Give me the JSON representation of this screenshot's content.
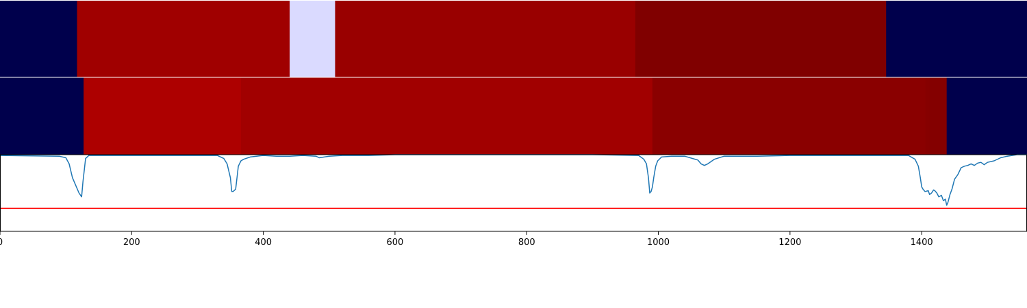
{
  "chart_data": [
    {
      "type": "heatmap",
      "name": "segments-row-1",
      "segments": [
        {
          "start": 0,
          "end": 117,
          "color": "#00004c"
        },
        {
          "start": 117,
          "end": 440,
          "color": "#a00000"
        },
        {
          "start": 440,
          "end": 509,
          "color": "#dadaff"
        },
        {
          "start": 509,
          "end": 965,
          "color": "#990000"
        },
        {
          "start": 965,
          "end": 1346,
          "color": "#800000"
        },
        {
          "start": 1346,
          "end": 1560,
          "color": "#00004c"
        }
      ]
    },
    {
      "type": "heatmap",
      "name": "segments-row-2",
      "segments": [
        {
          "start": 0,
          "end": 127,
          "color": "#00004c"
        },
        {
          "start": 127,
          "end": 366,
          "color": "#ad0000"
        },
        {
          "start": 366,
          "end": 991,
          "color": "#a10000"
        },
        {
          "start": 991,
          "end": 1406,
          "color": "#8a0000"
        },
        {
          "start": 1406,
          "end": 1412,
          "color": "#860000"
        },
        {
          "start": 1412,
          "end": 1438,
          "color": "#840000"
        },
        {
          "start": 1438,
          "end": 1560,
          "color": "#00004c"
        }
      ]
    },
    {
      "type": "line",
      "xlim": [
        0,
        1560
      ],
      "ylim": [
        -1.0,
        0.0
      ],
      "x": [
        0,
        90,
        100,
        105,
        110,
        115,
        120,
        124,
        126,
        128,
        130,
        135,
        330,
        340,
        345,
        350,
        352,
        354,
        358,
        362,
        366,
        370,
        380,
        400,
        420,
        440,
        460,
        480,
        485,
        500,
        520,
        540,
        560,
        600,
        700,
        800,
        900,
        970,
        978,
        982,
        985,
        987,
        989,
        991,
        993,
        996,
        999,
        1005,
        1020,
        1040,
        1060,
        1065,
        1070,
        1075,
        1085,
        1100,
        1150,
        1200,
        1300,
        1380,
        1390,
        1395,
        1398,
        1400,
        1402,
        1405,
        1410,
        1412,
        1415,
        1418,
        1420,
        1423,
        1426,
        1430,
        1433,
        1436,
        1438,
        1440,
        1443,
        1446,
        1450,
        1455,
        1460,
        1465,
        1470,
        1475,
        1480,
        1485,
        1490,
        1495,
        1500,
        1510,
        1520,
        1530,
        1545,
        1560
      ],
      "y": [
        -0.01,
        -0.02,
        -0.04,
        -0.12,
        -0.3,
        -0.4,
        -0.5,
        -0.55,
        -0.35,
        -0.2,
        -0.05,
        -0.01,
        -0.01,
        -0.05,
        -0.12,
        -0.3,
        -0.48,
        -0.48,
        -0.45,
        -0.15,
        -0.08,
        -0.06,
        -0.03,
        -0.01,
        -0.02,
        -0.02,
        -0.01,
        -0.02,
        -0.04,
        -0.02,
        -0.01,
        -0.01,
        -0.01,
        -0.0,
        -0.0,
        -0.0,
        -0.0,
        -0.01,
        -0.06,
        -0.12,
        -0.3,
        -0.5,
        -0.48,
        -0.42,
        -0.3,
        -0.15,
        -0.08,
        -0.03,
        -0.02,
        -0.02,
        -0.07,
        -0.12,
        -0.14,
        -0.12,
        -0.06,
        -0.02,
        -0.02,
        -0.01,
        -0.01,
        -0.01,
        -0.06,
        -0.15,
        -0.3,
        -0.42,
        -0.45,
        -0.48,
        -0.47,
        -0.52,
        -0.5,
        -0.46,
        -0.47,
        -0.5,
        -0.55,
        -0.53,
        -0.6,
        -0.58,
        -0.66,
        -0.62,
        -0.52,
        -0.45,
        -0.32,
        -0.26,
        -0.17,
        -0.15,
        -0.14,
        -0.12,
        -0.14,
        -0.11,
        -0.1,
        -0.13,
        -0.1,
        -0.08,
        -0.04,
        -0.02,
        -0.0,
        -0.0
      ],
      "series_color": "#1f77b4",
      "threshold": {
        "y": -0.7,
        "color": "#ff0000"
      },
      "xticks": [
        0,
        200,
        400,
        600,
        800,
        1000,
        1200,
        1400
      ]
    }
  ]
}
